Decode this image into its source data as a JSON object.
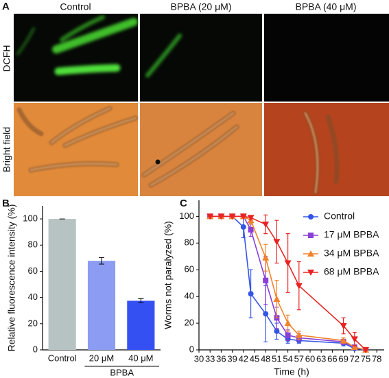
{
  "panel_a": {
    "panel_label": "A",
    "columns": [
      "Control",
      "BPBA (20 μM)",
      "BPBA (40 μM)"
    ],
    "rows": [
      "DCFH",
      "Bright field"
    ]
  },
  "chart_data": [
    {
      "type": "bar",
      "panel_label": "B",
      "ylabel": "Relative fluorescence intensity (%)",
      "categories": [
        "Control",
        "20 μM",
        "40 μM"
      ],
      "group_label": "BPBA",
      "values": [
        100,
        68,
        37.5
      ],
      "errors": [
        0,
        2.5,
        1.5
      ],
      "colors": [
        "#b7c3c3",
        "#8c9cf2",
        "#3550f2"
      ],
      "ylim": [
        0,
        110
      ],
      "yticks": [
        0,
        20,
        40,
        60,
        80,
        100
      ]
    },
    {
      "type": "line",
      "panel_label": "C",
      "xlabel": "Time (h)",
      "ylabel": "Worms not paralyzed (%)",
      "x": [
        33,
        36,
        39,
        42,
        44,
        48,
        51,
        54,
        57,
        69,
        72,
        75
      ],
      "series": [
        {
          "name": "Control",
          "color": "#3355e6",
          "marker": "circle",
          "values": [
            100,
            100,
            100,
            92,
            42,
            27,
            14,
            8,
            7,
            5,
            1,
            0
          ],
          "errors": [
            0,
            0,
            0,
            8,
            18,
            21,
            6,
            3,
            2,
            2,
            1,
            0
          ]
        },
        {
          "name": "17 μM BPBA",
          "color": "#8a3fd6",
          "marker": "square",
          "values": [
            100,
            100,
            100,
            100,
            90,
            52,
            24,
            11,
            9,
            6,
            2,
            0
          ],
          "errors": [
            0,
            0,
            0,
            0,
            5,
            18,
            8,
            4,
            3,
            2,
            1,
            0
          ]
        },
        {
          "name": "34 μM BPBA",
          "color": "#f2822a",
          "marker": "triangle-up",
          "values": [
            100,
            100,
            100,
            100,
            97,
            69,
            38,
            20,
            11,
            7,
            2,
            0
          ],
          "errors": [
            0,
            0,
            0,
            0,
            3,
            10,
            14,
            6,
            3,
            2,
            1,
            0
          ]
        },
        {
          "name": "68 μM BPBA",
          "color": "#e82323",
          "marker": "triangle-down",
          "values": [
            100,
            100,
            100,
            100,
            99,
            94,
            81,
            65,
            48,
            18,
            8,
            0
          ],
          "errors": [
            0,
            0,
            0,
            0,
            1,
            7,
            16,
            22,
            18,
            6,
            5,
            0
          ]
        }
      ],
      "xlim": [
        30,
        80
      ],
      "xticks": [
        30,
        33,
        36,
        39,
        42,
        45,
        48,
        51,
        54,
        57,
        60,
        63,
        66,
        69,
        72,
        75,
        78
      ],
      "ylim": [
        0,
        112
      ],
      "yticks": [
        0,
        20,
        40,
        60,
        80,
        100
      ],
      "legend": "top-right"
    }
  ]
}
